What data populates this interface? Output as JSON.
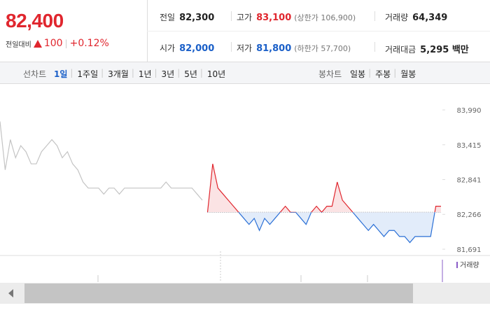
{
  "header": {
    "price": "82,400",
    "change_label": "전일대비",
    "change": "100",
    "change_rate": "+0.12%"
  },
  "stats": [
    {
      "label": "전일",
      "value": "82,300",
      "color": "#222"
    },
    {
      "label": "고가",
      "value": "83,100",
      "note": "(상한가 106,900)",
      "color": "#e0262e"
    },
    {
      "label": "거래량",
      "value": "64,349",
      "color": "#222"
    },
    {
      "label": "시가",
      "value": "82,000",
      "color": "#1a5fc8"
    },
    {
      "label": "저가",
      "value": "81,800",
      "note": "(하한가 57,700)",
      "color": "#1a5fc8"
    },
    {
      "label": "거래대금",
      "value": "5,295 백만",
      "color": "#222"
    }
  ],
  "tabs": {
    "line_label": "선차트",
    "line": [
      "1일",
      "1주일",
      "3개월",
      "1년",
      "3년",
      "5년",
      "10년"
    ],
    "candle_label": "봉차트",
    "candle": [
      "일봉",
      "주봉",
      "월봉"
    ]
  },
  "chart_data": {
    "type": "line",
    "ylim": [
      81587,
      84360
    ],
    "yticks": [
      {
        "value": 81691,
        "label": "81,691"
      },
      {
        "value": 82266,
        "label": "82,266"
      },
      {
        "value": 82841,
        "label": "82,841"
      },
      {
        "value": 83415,
        "label": "83,415"
      },
      {
        "value": 83990,
        "label": "83,990"
      }
    ],
    "baseline": 82300,
    "volume_label": "거래량",
    "series": [
      {
        "color": "#c4c4c4",
        "values": [
          83800,
          83000,
          83500,
          83200,
          83400,
          83300,
          83100,
          83100,
          83300,
          83400,
          83500,
          83400,
          83200,
          83300,
          83100,
          83000,
          82800,
          82700,
          82700,
          82700,
          82600,
          82700,
          82700,
          82600,
          82700,
          82700,
          82700,
          82700,
          82700,
          82700,
          82700,
          82700,
          82800,
          82700,
          82700,
          82700,
          82700,
          82700,
          82600,
          82500,
          null,
          null,
          null,
          null,
          null,
          null,
          null,
          null,
          null,
          null,
          null,
          null,
          null,
          null,
          null,
          null,
          null,
          null,
          null,
          null,
          null,
          null,
          null,
          null,
          null,
          null,
          null,
          null,
          null,
          null,
          null,
          null,
          null,
          null,
          null,
          null,
          null,
          null,
          null,
          null,
          null,
          null,
          null,
          null,
          null,
          null
        ]
      },
      {
        "color_up": "#e0262e",
        "color_down": "#2a6fd6",
        "values": [
          null,
          null,
          null,
          null,
          null,
          null,
          null,
          null,
          null,
          null,
          null,
          null,
          null,
          null,
          null,
          null,
          null,
          null,
          null,
          null,
          null,
          null,
          null,
          null,
          null,
          null,
          null,
          null,
          null,
          null,
          null,
          null,
          null,
          null,
          null,
          null,
          null,
          null,
          null,
          null,
          82300,
          83100,
          82700,
          82600,
          82500,
          82400,
          82300,
          82200,
          82100,
          82200,
          82000,
          82200,
          82100,
          82200,
          82300,
          82400,
          82300,
          82300,
          82200,
          82100,
          82300,
          82400,
          82300,
          82400,
          82400,
          82800,
          82500,
          82400,
          82300,
          82200,
          82100,
          82000,
          82100,
          82000,
          81900,
          82000,
          82000,
          81900,
          81900,
          81800,
          81900,
          81900,
          81900,
          81900,
          82400,
          82400
        ]
      }
    ]
  }
}
